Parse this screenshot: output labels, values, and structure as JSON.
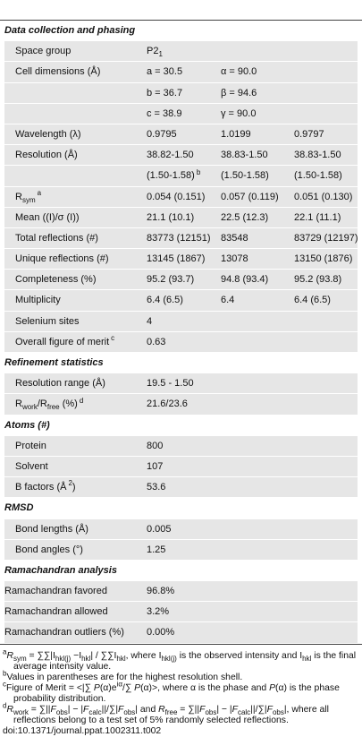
{
  "table": {
    "sections": [
      {
        "title": "Data collection and phasing",
        "indent": true,
        "rows": [
          {
            "label": "Space group",
            "cells": [
              [
                {
                  "text": "P2"
                },
                {
                  "sub": "1"
                }
              ]
            ]
          },
          {
            "label": "Cell dimensions (Å)",
            "cells": [
              "a = 30.5",
              "α = 90.0"
            ]
          },
          {
            "cells": [
              "b = 36.7",
              "β = 94.6"
            ]
          },
          {
            "cells": [
              "c = 38.9",
              "γ = 90.0"
            ]
          },
          {
            "label": "Wavelength (λ)",
            "cells": [
              "0.9795",
              "1.0199",
              "0.9797"
            ]
          },
          {
            "label": "Resolution (Å)",
            "cells": [
              "38.82-1.50",
              "38.83-1.50",
              "38.83-1.50"
            ]
          },
          {
            "cells": [
              [
                {
                  "text": "(1.50-1.58)"
                },
                {
                  "sup": "b"
                }
              ],
              "(1.50-1.58)",
              "(1.50-1.58)"
            ]
          },
          {
            "label": [
              {
                "text": "R"
              },
              {
                "sub": "sym"
              },
              {
                "sup": "a"
              }
            ],
            "cells": [
              "0.054 (0.151)",
              "0.057 (0.119)",
              "0.051 (0.130)"
            ]
          },
          {
            "label": "Mean ((I)/σ (I))",
            "cells": [
              "21.1 (10.1)",
              "22.5 (12.3)",
              "22.1 (11.1)"
            ]
          },
          {
            "label": "Total reflections (#)",
            "cells": [
              "83773 (12151)",
              "83548",
              "83729 (12197)"
            ]
          },
          {
            "label": "Unique reflections (#)",
            "cells": [
              "13145 (1867)",
              "13078",
              "13150 (1876)"
            ]
          },
          {
            "label": "Completeness (%)",
            "cells": [
              "95.2 (93.7)",
              "94.8 (93.4)",
              "95.2 (93.8)"
            ]
          },
          {
            "label": "Multiplicity",
            "cells": [
              "6.4 (6.5)",
              "6.4",
              "6.4 (6.5)"
            ]
          },
          {
            "label": "Selenium sites",
            "cells": [
              "4"
            ]
          },
          {
            "label": [
              {
                "text": "Overall figure of merit"
              },
              {
                "sup": "c"
              }
            ],
            "cells": [
              "0.63"
            ]
          }
        ]
      },
      {
        "title": "Refinement statistics",
        "indent": true,
        "rows": [
          {
            "label": "Resolution range (Å)",
            "cells": [
              "19.5 - 1.50"
            ]
          },
          {
            "label": [
              {
                "text": "R"
              },
              {
                "sub": "work"
              },
              {
                "text": "/R"
              },
              {
                "sub": "free"
              },
              {
                "text": " (%)"
              },
              {
                "sup": "d"
              }
            ],
            "cells": [
              "21.6/23.6"
            ]
          }
        ]
      },
      {
        "title": "Atoms (#)",
        "indent": true,
        "rows": [
          {
            "label": "Protein",
            "cells": [
              "800"
            ]
          },
          {
            "label": "Solvent",
            "cells": [
              "107"
            ]
          },
          {
            "label": [
              {
                "text": "B factors (Å"
              },
              {
                "sup": "2"
              },
              {
                "text": ")"
              }
            ],
            "cells": [
              "53.6"
            ]
          }
        ]
      },
      {
        "title": "RMSD",
        "indent": true,
        "rows": [
          {
            "label": "Bond lengths (Å)",
            "cells": [
              "0.005"
            ]
          },
          {
            "label": "Bond angles (°)",
            "cells": [
              "1.25"
            ]
          }
        ]
      },
      {
        "title": "Ramachandran analysis",
        "indent": false,
        "rows": [
          {
            "label": "Ramachandran favored",
            "cells": [
              "96.8%"
            ]
          },
          {
            "label": "Ramachandran allowed",
            "cells": [
              "3.2%"
            ]
          },
          {
            "label": "Ramachandran outliers (%)",
            "cells": [
              "0.00%"
            ]
          }
        ]
      }
    ]
  },
  "footnotes": [
    [
      {
        "sup": "a"
      },
      {
        "i": "R"
      },
      {
        "sub": "sym"
      },
      {
        "text": " = ∑∑|I"
      },
      {
        "sub": "hkl(j)"
      },
      {
        "text": " −I"
      },
      {
        "sub": "hkl"
      },
      {
        "text": "| / ∑∑I"
      },
      {
        "sub": "hkl"
      },
      {
        "text": ", where I"
      },
      {
        "sub": "hkl(j)"
      },
      {
        "text": " is the observed intensity and I"
      },
      {
        "sub": "hkl"
      },
      {
        "text": " is the final average intensity value."
      }
    ],
    [
      {
        "sup": "b"
      },
      {
        "text": "Values in parentheses are for the highest resolution shell."
      }
    ],
    [
      {
        "sup": "c"
      },
      {
        "text": "Figure of Merit = <|∑ "
      },
      {
        "i": "P"
      },
      {
        "text": "(α)e"
      },
      {
        "sup": "iα"
      },
      {
        "text": "/∑ "
      },
      {
        "i": "P"
      },
      {
        "text": "(α)>, where α is the phase and "
      },
      {
        "i": "P"
      },
      {
        "text": "(α) is the phase probability distribution."
      }
    ],
    [
      {
        "sup": "d"
      },
      {
        "i": "R"
      },
      {
        "sub": "work"
      },
      {
        "text": " = ∑||"
      },
      {
        "i": "F"
      },
      {
        "sub": "obs"
      },
      {
        "text": "| − |"
      },
      {
        "i": "F"
      },
      {
        "sub": "calc"
      },
      {
        "text": "||/∑|"
      },
      {
        "i": "F"
      },
      {
        "sub": "obs"
      },
      {
        "text": "| and "
      },
      {
        "i": "R"
      },
      {
        "sub": "free"
      },
      {
        "text": " = ∑||"
      },
      {
        "i": "F"
      },
      {
        "sub": "obs"
      },
      {
        "text": "| − |"
      },
      {
        "i": "F"
      },
      {
        "sub": "calc"
      },
      {
        "text": "||/∑|"
      },
      {
        "i": "F"
      },
      {
        "sub": "obs"
      },
      {
        "text": "|, where all reflections belong to a test set of 5% randomly selected reflections."
      }
    ]
  ],
  "doi": "doi:10.1371/journal.ppat.1002311.t002"
}
